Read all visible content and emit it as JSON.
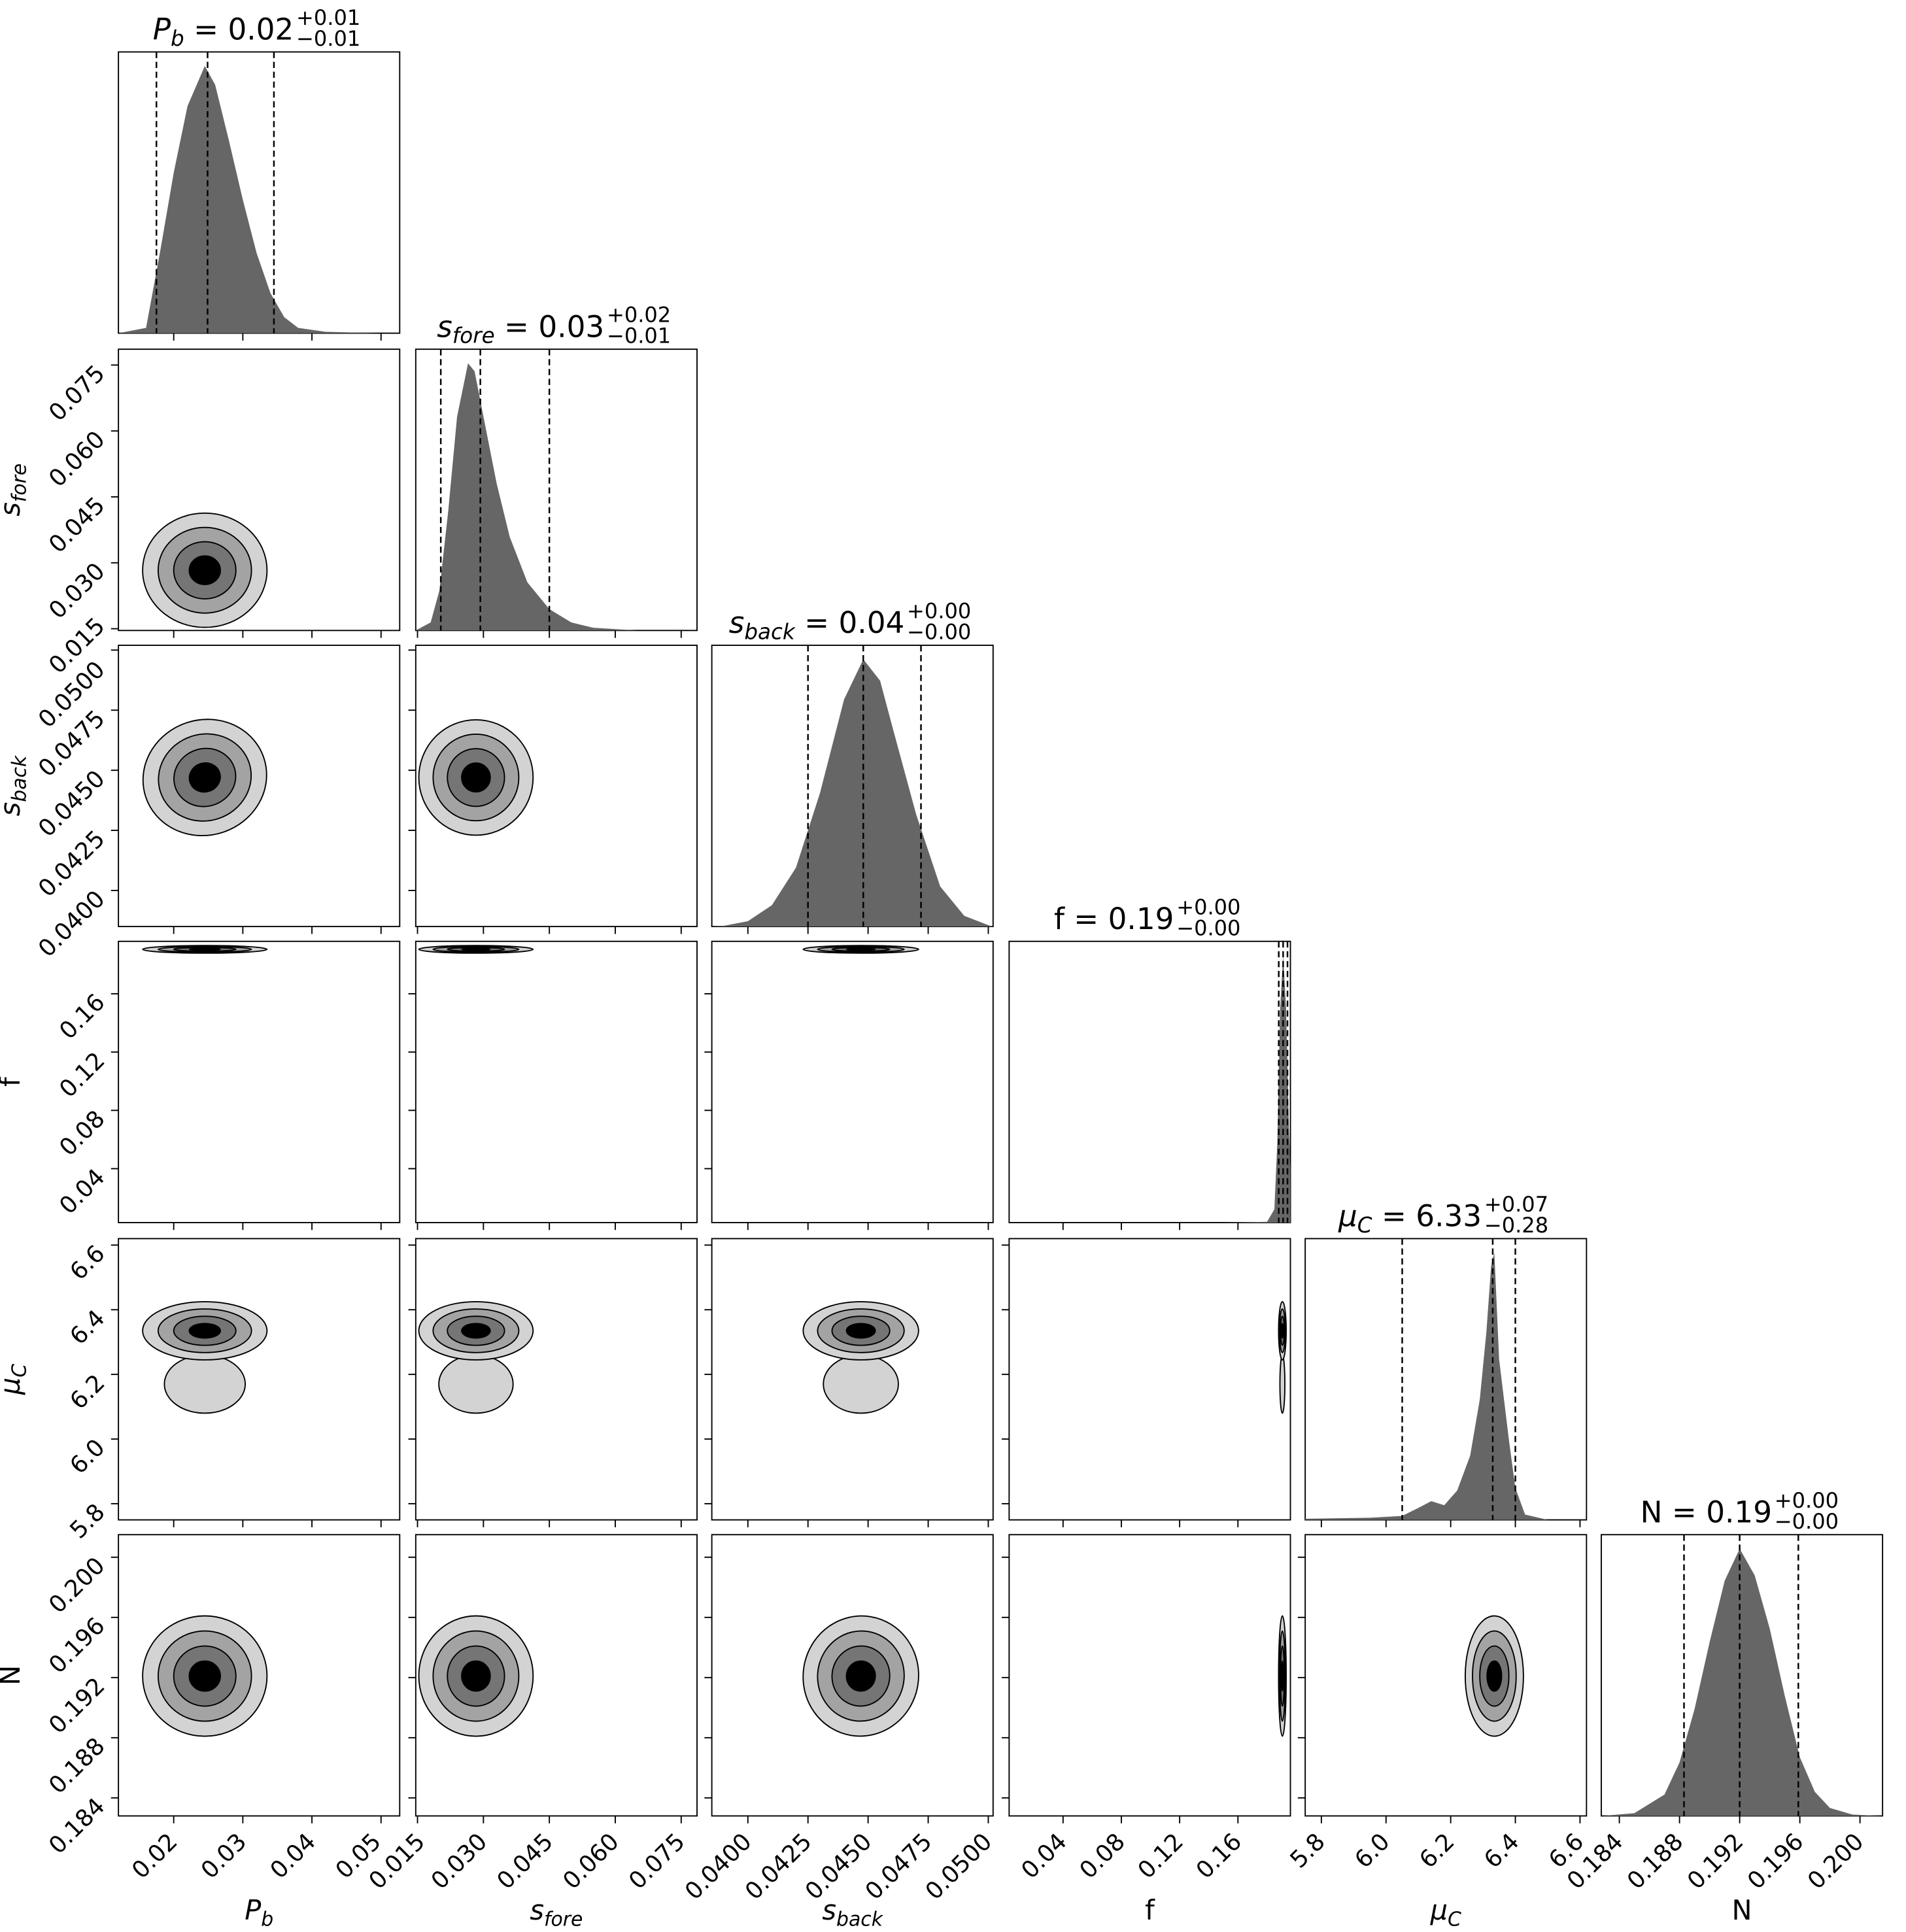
{
  "chart_data": {
    "type": "corner",
    "grid": false,
    "colors": {
      "hist_fill": "#666666",
      "contour_levels": [
        "#d3d3d3",
        "#a3a3a3",
        "#757575",
        "#000000"
      ],
      "quantile_line": "#000000"
    },
    "parameters": [
      {
        "key": "Pb",
        "name": "P",
        "sub": "b",
        "italic": true,
        "title": {
          "value": "0.02",
          "plus": "+0.01",
          "minus": "−0.01"
        },
        "range": [
          0.012,
          0.0527
        ],
        "ticks": [
          0.02,
          0.03,
          0.04,
          0.05
        ],
        "tick_labels": [
          "0.02",
          "0.03",
          "0.04",
          "0.05"
        ],
        "quantiles": [
          0.0175,
          0.0249,
          0.0345
        ],
        "hist": [
          [
            0.012,
            0
          ],
          [
            0.016,
            0.02
          ],
          [
            0.018,
            0.3
          ],
          [
            0.02,
            0.6
          ],
          [
            0.022,
            0.85
          ],
          [
            0.0245,
            1.0
          ],
          [
            0.026,
            0.93
          ],
          [
            0.028,
            0.72
          ],
          [
            0.03,
            0.5
          ],
          [
            0.032,
            0.3
          ],
          [
            0.034,
            0.15
          ],
          [
            0.036,
            0.06
          ],
          [
            0.038,
            0.02
          ],
          [
            0.042,
            0.005
          ],
          [
            0.05,
            0
          ]
        ],
        "contour": {
          "center": 0.0245,
          "sd": 0.0045
        }
      },
      {
        "key": "sfore",
        "name": "s",
        "sub": "fore",
        "italic": true,
        "title": {
          "value": "0.03",
          "plus": "+0.02",
          "minus": "−0.01"
        },
        "range": [
          0.0146,
          0.0786
        ],
        "ticks": [
          0.015,
          0.03,
          0.045,
          0.06,
          0.075
        ],
        "tick_labels": [
          "0.015",
          "0.030",
          "0.045",
          "0.060",
          "0.075"
        ],
        "quantiles": [
          0.0203,
          0.0293,
          0.045
        ],
        "hist": [
          [
            0.0146,
            0
          ],
          [
            0.018,
            0.03
          ],
          [
            0.02,
            0.15
          ],
          [
            0.022,
            0.45
          ],
          [
            0.024,
            0.8
          ],
          [
            0.0265,
            1.0
          ],
          [
            0.028,
            0.97
          ],
          [
            0.03,
            0.8
          ],
          [
            0.033,
            0.55
          ],
          [
            0.036,
            0.35
          ],
          [
            0.04,
            0.18
          ],
          [
            0.045,
            0.08
          ],
          [
            0.05,
            0.03
          ],
          [
            0.055,
            0.01
          ],
          [
            0.065,
            0
          ]
        ],
        "contour": {
          "center": 0.0283,
          "sd": 0.0065
        }
      },
      {
        "key": "sback",
        "name": "s",
        "sub": "back",
        "italic": true,
        "title": {
          "value": "0.04",
          "plus": "+0.00",
          "minus": "−0.00"
        },
        "range": [
          0.0385,
          0.0502
        ],
        "ticks": [
          0.04,
          0.0425,
          0.045,
          0.0475,
          0.05
        ],
        "tick_labels": [
          "0.0400",
          "0.0425",
          "0.0450",
          "0.0475",
          "0.0500"
        ],
        "quantiles": [
          0.0425,
          0.0448,
          0.0472
        ],
        "hist": [
          [
            0.0385,
            0
          ],
          [
            0.039,
            0.003
          ],
          [
            0.04,
            0.02
          ],
          [
            0.041,
            0.08
          ],
          [
            0.042,
            0.22
          ],
          [
            0.043,
            0.5
          ],
          [
            0.044,
            0.85
          ],
          [
            0.0448,
            1.0
          ],
          [
            0.0455,
            0.92
          ],
          [
            0.046,
            0.75
          ],
          [
            0.047,
            0.42
          ],
          [
            0.048,
            0.15
          ],
          [
            0.049,
            0.04
          ],
          [
            0.05,
            0.005
          ],
          [
            0.0502,
            0
          ]
        ],
        "contour": {
          "center": 0.0447,
          "sd": 0.0012
        }
      },
      {
        "key": "f",
        "name": "f",
        "sub": "",
        "italic": false,
        "title": {
          "value": "0.19",
          "plus": "+0.00",
          "minus": "−0.00"
        },
        "range": [
          0.003,
          0.196
        ],
        "ticks": [
          0.04,
          0.08,
          0.12,
          0.16
        ],
        "tick_labels": [
          "0.04",
          "0.08",
          "0.12",
          "0.16"
        ],
        "quantiles": [
          0.188,
          0.191,
          0.194
        ],
        "hist": [
          [
            0.003,
            0
          ],
          [
            0.15,
            0
          ],
          [
            0.18,
            0.003
          ],
          [
            0.185,
            0.05
          ],
          [
            0.187,
            0.3
          ],
          [
            0.189,
            0.8
          ],
          [
            0.191,
            1.0
          ],
          [
            0.193,
            0.8
          ],
          [
            0.195,
            0.35
          ],
          [
            0.196,
            0.2
          ]
        ],
        "contour": {
          "center": 0.1905,
          "sd": 0.0013
        }
      },
      {
        "key": "muC",
        "name": "μ",
        "sub": "C",
        "italic": true,
        "title": {
          "value": "6.33",
          "plus": "+0.07",
          "minus": "−0.28"
        },
        "range": [
          5.75,
          6.62
        ],
        "ticks": [
          5.8,
          6.0,
          6.2,
          6.4,
          6.6
        ],
        "tick_labels": [
          "5.8",
          "6.0",
          "6.2",
          "6.4",
          "6.6"
        ],
        "quantiles": [
          6.05,
          6.33,
          6.4
        ],
        "hist": [
          [
            5.75,
            0.004
          ],
          [
            5.95,
            0.008
          ],
          [
            6.05,
            0.015
          ],
          [
            6.1,
            0.045
          ],
          [
            6.14,
            0.07
          ],
          [
            6.18,
            0.055
          ],
          [
            6.22,
            0.11
          ],
          [
            6.26,
            0.24
          ],
          [
            6.29,
            0.45
          ],
          [
            6.31,
            0.7
          ],
          [
            6.325,
            0.95
          ],
          [
            6.335,
            1.0
          ],
          [
            6.35,
            0.6
          ],
          [
            6.38,
            0.3
          ],
          [
            6.4,
            0.12
          ],
          [
            6.43,
            0.02
          ],
          [
            6.5,
            0
          ],
          [
            6.62,
            0
          ]
        ],
        "contour": {
          "center": 6.335,
          "sd": 0.045,
          "tail_center": 6.17,
          "tail_sd": 0.06
        }
      },
      {
        "key": "N",
        "name": "N",
        "sub": "",
        "italic": false,
        "title": {
          "value": "0.19",
          "plus": "+0.00",
          "minus": "−0.00"
        },
        "range": [
          0.1828,
          0.2015
        ],
        "ticks": [
          0.184,
          0.188,
          0.192,
          0.196,
          0.2
        ],
        "tick_labels": [
          "0.184",
          "0.188",
          "0.192",
          "0.196",
          "0.200"
        ],
        "quantiles": [
          0.1883,
          0.192,
          0.1959
        ],
        "hist": [
          [
            0.1828,
            0
          ],
          [
            0.185,
            0.01
          ],
          [
            0.187,
            0.08
          ],
          [
            0.188,
            0.2
          ],
          [
            0.189,
            0.4
          ],
          [
            0.19,
            0.65
          ],
          [
            0.191,
            0.88
          ],
          [
            0.192,
            1.0
          ],
          [
            0.193,
            0.9
          ],
          [
            0.194,
            0.7
          ],
          [
            0.195,
            0.45
          ],
          [
            0.196,
            0.22
          ],
          [
            0.197,
            0.09
          ],
          [
            0.198,
            0.03
          ],
          [
            0.1995,
            0.005
          ],
          [
            0.2015,
            0
          ]
        ],
        "contour": {
          "center": 0.1921,
          "sd": 0.002
        }
      }
    ],
    "correlations": {
      "Pb|sback": -0.3,
      "sfore|sback": 0.0,
      "Pb|sfore": 0.0,
      "muC|N": 0.0,
      "sback|N": 0.15
    }
  }
}
